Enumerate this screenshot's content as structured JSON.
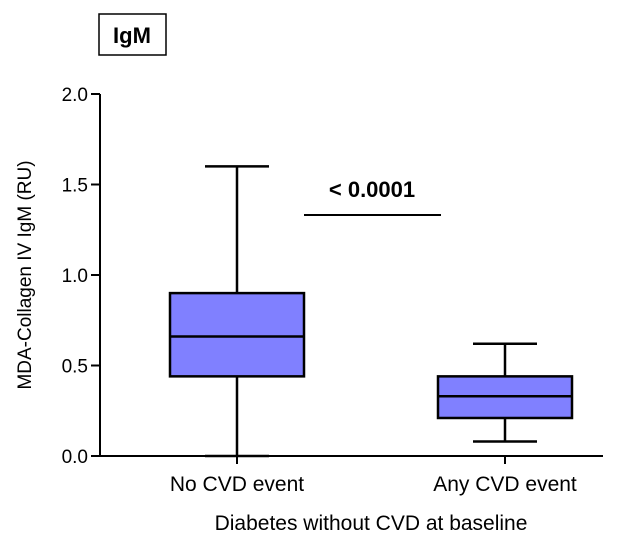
{
  "panel_label": "IgM",
  "chart_data": {
    "type": "box",
    "title": "",
    "xlabel": "Diabetes without CVD at baseline",
    "ylabel": "MDA-Collagen IV IgM (RU)",
    "ylim": [
      0,
      2.0
    ],
    "yticks": [
      {
        "value": 0.0,
        "label": "0.0"
      },
      {
        "value": 0.5,
        "label": "0.5"
      },
      {
        "value": 1.0,
        "label": "1.0"
      },
      {
        "value": 1.5,
        "label": "1.5"
      },
      {
        "value": 2.0,
        "label": "2.0"
      }
    ],
    "categories": [
      "No CVD event",
      "Any CVD event"
    ],
    "boxes": [
      {
        "category": "No CVD event",
        "min": 0.0,
        "q1": 0.44,
        "median": 0.66,
        "q3": 0.9,
        "max": 1.6
      },
      {
        "category": "Any CVD event",
        "min": 0.08,
        "q1": 0.21,
        "median": 0.33,
        "q3": 0.44,
        "max": 0.62
      }
    ],
    "annotation": {
      "text": "< 0.0001"
    },
    "box_fill": "#8080ff",
    "grid": false
  }
}
